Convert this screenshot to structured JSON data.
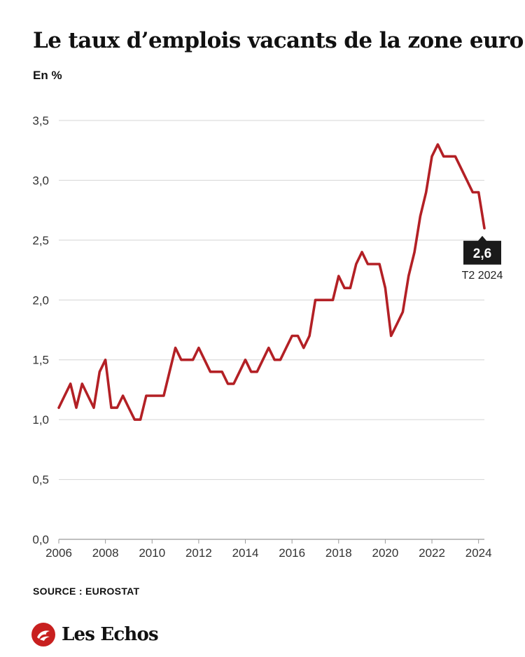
{
  "header": {
    "title": "Le taux d’emplois vacants de la zone euro",
    "subtitle": "En %"
  },
  "footer": {
    "source": "SOURCE : EUROSTAT",
    "brand": "Les Echos",
    "brand_icon": "les-echos-logo-icon"
  },
  "colors": {
    "line": "#b32025",
    "grid": "#d4d4d4",
    "callout_bg": "#1a1a1a",
    "logo_red": "#c8201f"
  },
  "chart_data": {
    "type": "line",
    "title": "Le taux d’emplois vacants de la zone euro",
    "ylabel": "En %",
    "xlabel": "",
    "xlim": [
      2006.0,
      2024.25
    ],
    "ylim": [
      0,
      3.5
    ],
    "y_ticks": [
      "0,0",
      "0,5",
      "1,0",
      "1,5",
      "2,0",
      "2,5",
      "3,0",
      "3,5"
    ],
    "y_tick_values": [
      0,
      0.5,
      1.0,
      1.5,
      2.0,
      2.5,
      3.0,
      3.5
    ],
    "x_ticks": [
      "2006",
      "2008",
      "2010",
      "2012",
      "2014",
      "2016",
      "2018",
      "2020",
      "2022",
      "2024"
    ],
    "x_tick_values": [
      2006,
      2008,
      2010,
      2012,
      2014,
      2016,
      2018,
      2020,
      2022,
      2024
    ],
    "grid": "horizontal",
    "x": [
      2006.0,
      2006.25,
      2006.5,
      2006.75,
      2007.0,
      2007.25,
      2007.5,
      2007.75,
      2008.0,
      2008.25,
      2008.5,
      2008.75,
      2009.0,
      2009.25,
      2009.5,
      2009.75,
      2010.0,
      2010.25,
      2010.5,
      2010.75,
      2011.0,
      2011.25,
      2011.5,
      2011.75,
      2012.0,
      2012.25,
      2012.5,
      2012.75,
      2013.0,
      2013.25,
      2013.5,
      2013.75,
      2014.0,
      2014.25,
      2014.5,
      2014.75,
      2015.0,
      2015.25,
      2015.5,
      2015.75,
      2016.0,
      2016.25,
      2016.5,
      2016.75,
      2017.0,
      2017.25,
      2017.5,
      2017.75,
      2018.0,
      2018.25,
      2018.5,
      2018.75,
      2019.0,
      2019.25,
      2019.5,
      2019.75,
      2020.0,
      2020.25,
      2020.5,
      2020.75,
      2021.0,
      2021.25,
      2021.5,
      2021.75,
      2022.0,
      2022.25,
      2022.5,
      2022.75,
      2023.0,
      2023.25,
      2023.5,
      2023.75,
      2024.0,
      2024.25
    ],
    "series": [
      {
        "values": [
          1.1,
          1.2,
          1.3,
          1.1,
          1.3,
          1.2,
          1.1,
          1.4,
          1.5,
          1.1,
          1.1,
          1.2,
          1.1,
          1.0,
          1.0,
          1.2,
          1.2,
          1.2,
          1.2,
          1.4,
          1.6,
          1.5,
          1.5,
          1.5,
          1.6,
          1.5,
          1.4,
          1.4,
          1.4,
          1.3,
          1.3,
          1.4,
          1.5,
          1.4,
          1.4,
          1.5,
          1.6,
          1.5,
          1.5,
          1.6,
          1.7,
          1.7,
          1.6,
          1.7,
          2.0,
          2.0,
          2.0,
          2.0,
          2.2,
          2.1,
          2.1,
          2.3,
          2.4,
          2.3,
          2.3,
          2.3,
          2.1,
          1.7,
          1.8,
          1.9,
          2.2,
          2.4,
          2.7,
          2.9,
          3.2,
          3.3,
          3.2,
          3.2,
          3.2,
          3.1,
          3.0,
          2.9,
          2.9,
          2.6
        ]
      }
    ],
    "annotation": {
      "value_label": "2,6",
      "period_label": "T2 2024",
      "x": 2024.25,
      "y": 2.6
    }
  }
}
